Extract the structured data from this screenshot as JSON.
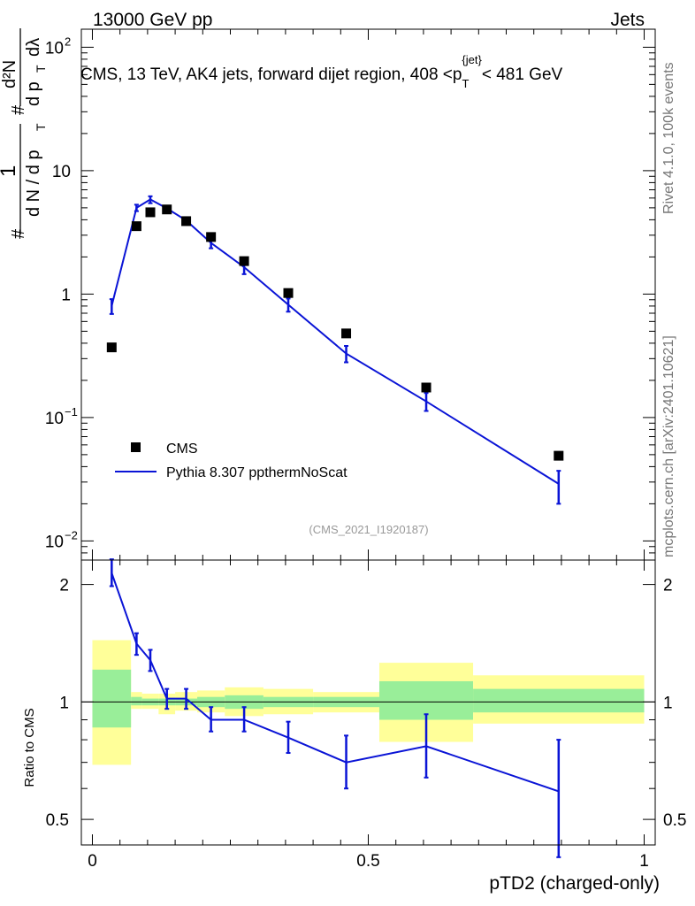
{
  "header": {
    "left": "13000 GeV pp",
    "right": "Jets"
  },
  "side_labels": {
    "rivet": "Rivet 4.1.0,  100k events",
    "mcplots": "mcplots.cern.ch [arXiv:2401.10621]"
  },
  "chart_data": {
    "type": "line",
    "title": "CMS, 13 TeV, AK4 jets, forward dijet region, 408 < p_T^{jet} < 481 GeV",
    "title_parts": {
      "main": "CMS, 13 TeV, AK4 jets, forward dijet region, 408 <p",
      "sup": "{jet}",
      "sub": "T",
      "tail": "< 481 GeV"
    },
    "analysis_id": "(CMS_2021_I1920187)",
    "xlabel": "pTD2 (charged-only)",
    "ylabel_main": "1 / dN / dp_T # d²N / dp_T dλ",
    "ylabel_ratio": "Ratio to CMS",
    "xlim": [
      -0.02,
      1.02
    ],
    "ylim_main": [
      0.007,
      140
    ],
    "ylim_ratio": [
      0.43,
      2.31
    ],
    "x_ticks": [
      {
        "value": 0,
        "label": "0"
      },
      {
        "value": 0.5,
        "label": "0.5"
      },
      {
        "value": 1,
        "label": "1"
      }
    ],
    "main_y_ticks": [
      {
        "value": 0.01,
        "base": "10",
        "exp": "−2"
      },
      {
        "value": 0.1,
        "base": "10",
        "exp": "−1"
      },
      {
        "value": 1,
        "base": "1",
        "exp": ""
      },
      {
        "value": 10,
        "base": "10",
        "exp": ""
      },
      {
        "value": 100,
        "base": "10",
        "exp": "2"
      }
    ],
    "ratio_y_ticks": [
      {
        "value": 0.5,
        "label": "0.5"
      },
      {
        "value": 1,
        "label": "1"
      },
      {
        "value": 2,
        "label": "2"
      }
    ],
    "legend": {
      "position": "lower-left",
      "entries": [
        {
          "label": "CMS",
          "marker": "square"
        },
        {
          "label": "Pythia 8.307 ppthermNoScat",
          "marker": "line"
        }
      ]
    },
    "colors": {
      "data": "#000000",
      "mc": "#0a14d6",
      "band_inner": "#99ee99",
      "band_outer": "#ffff99"
    },
    "cms": {
      "x": [
        0.035,
        0.08,
        0.105,
        0.135,
        0.17,
        0.215,
        0.275,
        0.355,
        0.46,
        0.605,
        0.845
      ],
      "y": [
        0.37,
        3.55,
        4.6,
        4.85,
        3.9,
        2.9,
        1.85,
        1.02,
        0.48,
        0.175,
        0.049
      ]
    },
    "bins": [
      {
        "lo": 0.0,
        "hi": 0.07,
        "inner": [
          0.86,
          1.21
        ],
        "outer": [
          0.69,
          1.44
        ]
      },
      {
        "lo": 0.07,
        "hi": 0.09,
        "inner": [
          0.98,
          1.03
        ],
        "outer": [
          0.96,
          1.06
        ]
      },
      {
        "lo": 0.09,
        "hi": 0.12,
        "inner": [
          0.98,
          1.02
        ],
        "outer": [
          0.96,
          1.05
        ]
      },
      {
        "lo": 0.12,
        "hi": 0.15,
        "inner": [
          0.98,
          1.02
        ],
        "outer": [
          0.93,
          1.05
        ]
      },
      {
        "lo": 0.15,
        "hi": 0.19,
        "inner": [
          0.98,
          1.02
        ],
        "outer": [
          0.95,
          1.06
        ]
      },
      {
        "lo": 0.19,
        "hi": 0.24,
        "inner": [
          0.97,
          1.03
        ],
        "outer": [
          0.94,
          1.07
        ]
      },
      {
        "lo": 0.24,
        "hi": 0.31,
        "inner": [
          0.96,
          1.04
        ],
        "outer": [
          0.92,
          1.09
        ]
      },
      {
        "lo": 0.31,
        "hi": 0.4,
        "inner": [
          0.97,
          1.03
        ],
        "outer": [
          0.93,
          1.08
        ]
      },
      {
        "lo": 0.4,
        "hi": 0.52,
        "inner": [
          0.97,
          1.03
        ],
        "outer": [
          0.94,
          1.06
        ]
      },
      {
        "lo": 0.52,
        "hi": 0.69,
        "inner": [
          0.9,
          1.13
        ],
        "outer": [
          0.79,
          1.26
        ]
      },
      {
        "lo": 0.69,
        "hi": 1.0,
        "inner": [
          0.94,
          1.08
        ],
        "outer": [
          0.88,
          1.17
        ]
      }
    ],
    "pythia": {
      "x": [
        0.035,
        0.08,
        0.105,
        0.135,
        0.17,
        0.215,
        0.275,
        0.355,
        0.46,
        0.605,
        0.845
      ],
      "y": [
        0.8,
        5.0,
        5.85,
        4.95,
        3.95,
        2.6,
        1.65,
        0.82,
        0.33,
        0.135,
        0.029
      ],
      "ylo": [
        0.69,
        4.7,
        5.45,
        4.7,
        3.72,
        2.35,
        1.45,
        0.72,
        0.28,
        0.113,
        0.02
      ],
      "yhi": [
        0.91,
        5.3,
        6.2,
        5.2,
        4.18,
        2.85,
        1.85,
        0.92,
        0.38,
        0.158,
        0.037
      ],
      "ratio": [
        2.14,
        1.41,
        1.28,
        1.02,
        1.02,
        0.9,
        0.9,
        0.81,
        0.7,
        0.77,
        0.59
      ],
      "ratio_lo": [
        1.98,
        1.32,
        1.2,
        0.96,
        0.96,
        0.84,
        0.84,
        0.74,
        0.6,
        0.64,
        0.4
      ],
      "ratio_hi": [
        2.32,
        1.5,
        1.36,
        1.08,
        1.08,
        0.97,
        0.97,
        0.89,
        0.82,
        0.93,
        0.8
      ]
    }
  }
}
